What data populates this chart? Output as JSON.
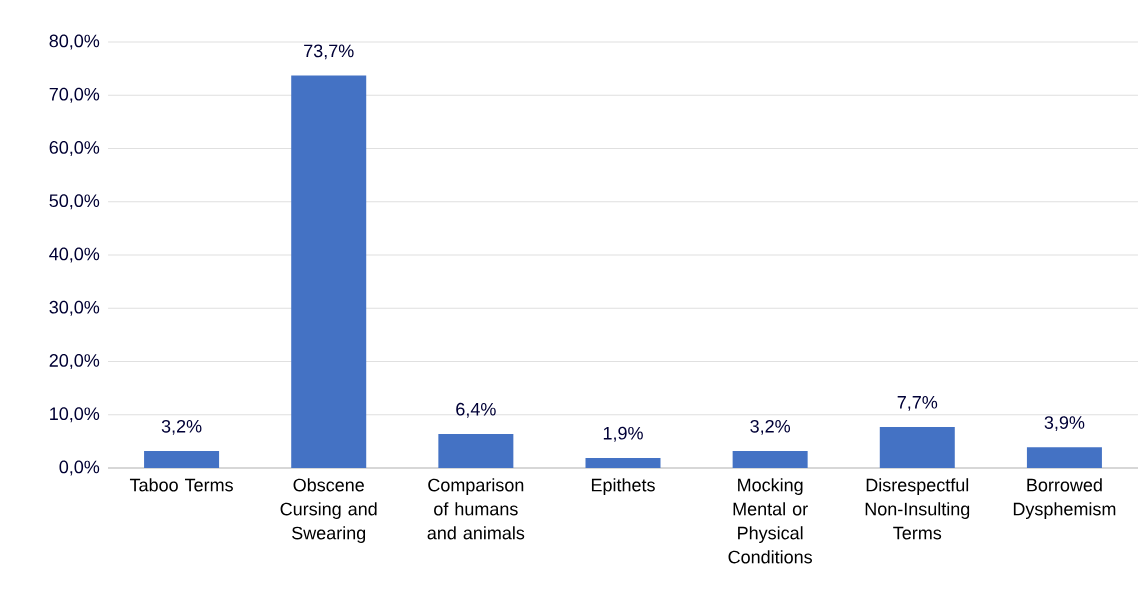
{
  "chart_data": {
    "type": "bar",
    "categories": [
      "Taboo Terms",
      "Obscene Cursing and Swearing",
      "Comparison of humans and animals",
      "Epithets",
      "Mocking Mental or Physical Conditions",
      "Disrespectful Non-Insulting Terms",
      "Borrowed Dysphemism"
    ],
    "values": [
      3.2,
      73.7,
      6.4,
      1.9,
      3.2,
      7.7,
      3.9
    ],
    "value_labels": [
      "3,2%",
      "73,7%",
      "6,4%",
      "1,9%",
      "3,2%",
      "7,7%",
      "3,9%"
    ],
    "color": "#4472c4",
    "ylim": [
      0,
      80
    ],
    "yticks": [
      {
        "value": 0,
        "label": "0,0%"
      },
      {
        "value": 10,
        "label": "10,0%"
      },
      {
        "value": 20,
        "label": "20,0%"
      },
      {
        "value": 30,
        "label": "30,0%"
      },
      {
        "value": 40,
        "label": "40,0%"
      },
      {
        "value": 50,
        "label": "50,0%"
      },
      {
        "value": 60,
        "label": "60,0%"
      },
      {
        "value": 70,
        "label": "70,0%"
      },
      {
        "value": 80,
        "label": "80,0%"
      }
    ],
    "grid": "y"
  }
}
